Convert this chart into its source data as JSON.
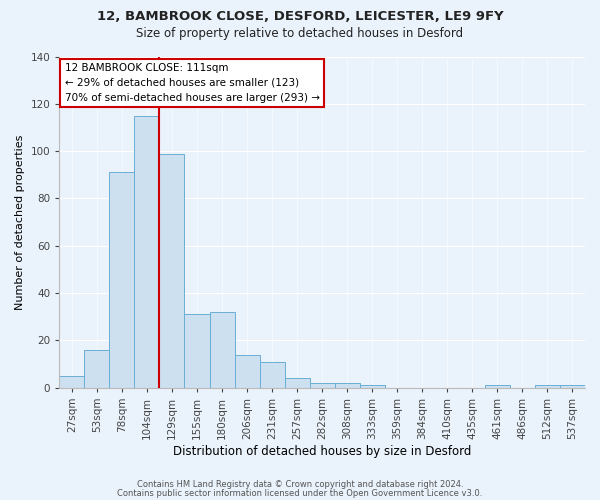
{
  "title1": "12, BAMBROOK CLOSE, DESFORD, LEICESTER, LE9 9FY",
  "title2": "Size of property relative to detached houses in Desford",
  "xlabel": "Distribution of detached houses by size in Desford",
  "ylabel": "Number of detached properties",
  "categories": [
    "27sqm",
    "53sqm",
    "78sqm",
    "104sqm",
    "129sqm",
    "155sqm",
    "180sqm",
    "206sqm",
    "231sqm",
    "257sqm",
    "282sqm",
    "308sqm",
    "333sqm",
    "359sqm",
    "384sqm",
    "410sqm",
    "435sqm",
    "461sqm",
    "486sqm",
    "512sqm",
    "537sqm"
  ],
  "values": [
    5,
    16,
    91,
    115,
    99,
    31,
    32,
    14,
    11,
    4,
    2,
    2,
    1,
    0,
    0,
    0,
    0,
    1,
    0,
    1,
    1
  ],
  "bar_color": "#cce0f0",
  "bar_edge_color": "#6aaed6",
  "vline_color": "#cc0000",
  "vline_pos": 3.5,
  "annotation_title": "12 BAMBROOK CLOSE: 111sqm",
  "annotation_line1": "← 29% of detached houses are smaller (123)",
  "annotation_line2": "70% of semi-detached houses are larger (293) →",
  "annotation_box_facecolor": "#ffffff",
  "annotation_box_edgecolor": "#cc0000",
  "ylim": [
    0,
    140
  ],
  "yticks": [
    0,
    20,
    40,
    60,
    80,
    100,
    120,
    140
  ],
  "footer1": "Contains HM Land Registry data © Crown copyright and database right 2024.",
  "footer2": "Contains public sector information licensed under the Open Government Licence v3.0.",
  "bg_color": "#eaf2fb",
  "grid_color": "#ffffff",
  "title1_fontsize": 9.5,
  "title2_fontsize": 8.5,
  "xlabel_fontsize": 8.5,
  "ylabel_fontsize": 8.0,
  "tick_fontsize": 7.5,
  "annotation_fontsize": 7.5,
  "footer_fontsize": 6.0
}
